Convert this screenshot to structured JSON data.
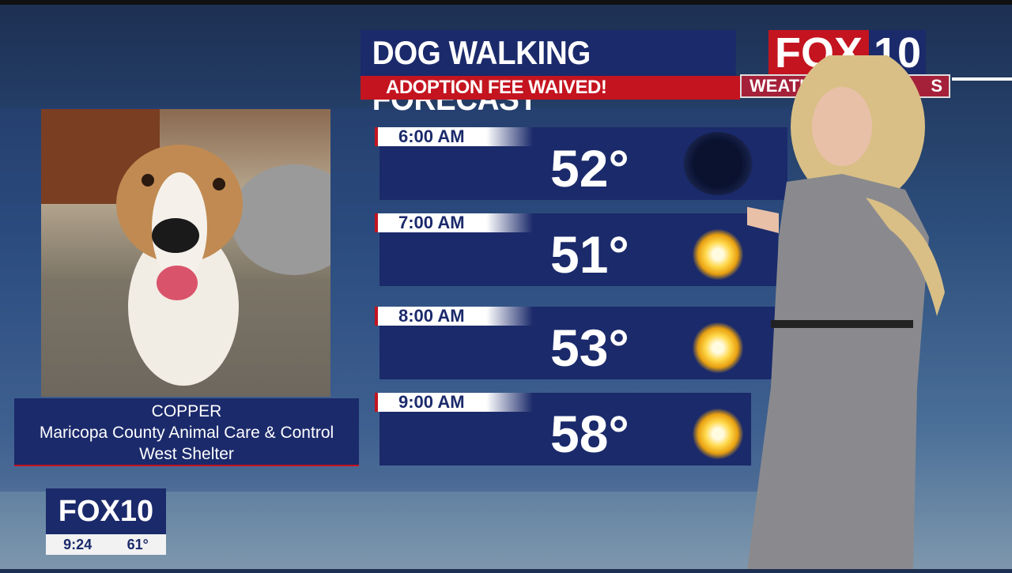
{
  "header": {
    "title": "DOG WALKING FORECAST",
    "subtitle": "ADOPTION FEE WAIVED!",
    "logo_fox": "FOX",
    "logo_num": "10",
    "tag_left": "WEATHER",
    "tag_right": "S"
  },
  "pet": {
    "name": "COPPER",
    "shelter": "Maricopa County Animal Care & Control",
    "location": "West Shelter"
  },
  "forecast": [
    {
      "time": "6:00 AM",
      "temp": "52°",
      "icon": "night-moon-icon"
    },
    {
      "time": "7:00 AM",
      "temp": "51°",
      "icon": "sun-icon"
    },
    {
      "time": "8:00 AM",
      "temp": "53°",
      "icon": "sun-icon"
    },
    {
      "time": "9:00 AM",
      "temp": "58°",
      "icon": "sun-icon"
    }
  ],
  "bug": {
    "logo": "FOX10",
    "time": "9:24",
    "temp": "61°"
  },
  "colors": {
    "navy": "#1b2a6b",
    "red": "#c4141f"
  }
}
